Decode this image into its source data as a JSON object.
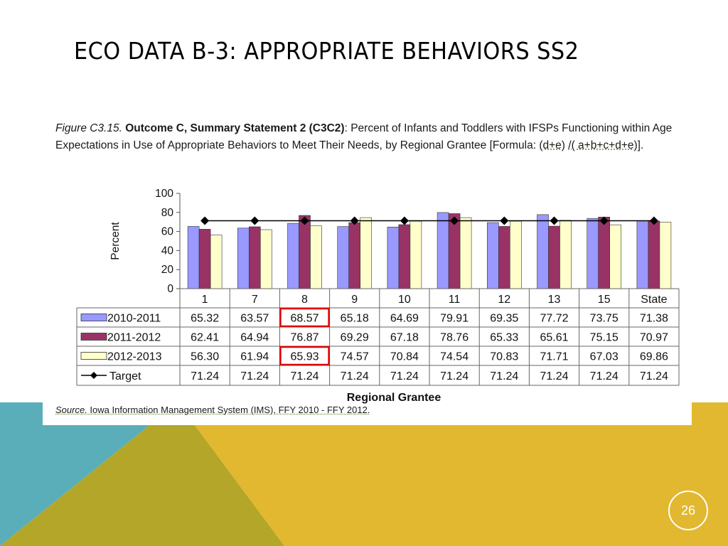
{
  "slide": {
    "title": "ECO DATA B-3: APPROPRIATE BEHAVIORS SS2",
    "page_number": "26"
  },
  "colors": {
    "teal": "#5aaeb9",
    "olive": "#b3a628",
    "gold": "#e2b830",
    "series_2010": "#9999ff",
    "series_2011": "#993366",
    "series_2012": "#ffffcc",
    "target": "#000000",
    "highlight": "#e00000"
  },
  "caption": {
    "figure": "Figure  C3.15.",
    "bold": "Outcome  C,  Summary  Statement  2  (C3C2)",
    "text": ":  Percent  of Infants and Toddlers with IFSPs Functioning within Age Expectations in Use  of Appropriate Behaviors to Meet Their  Needs,  by Regional Grantee  [Formula:  ",
    "formula_a": "(d+e)",
    "formula_sep": " ",
    "formula_b": "/( a+b+c+d+e)",
    "formula_end": "]."
  },
  "source": {
    "label": "Source.",
    "text": " Iowa Information Management System (IMS), FFY 2010 - FFY 2012."
  },
  "chart_data": {
    "type": "bar",
    "ylabel": "Percent",
    "xlabel": "Regional Grantee",
    "ylim": [
      0,
      100
    ],
    "yticks": [
      "0",
      "20",
      "40",
      "60",
      "80",
      "100"
    ],
    "categories": [
      "1",
      "7",
      "8",
      "9",
      "10",
      "11",
      "12",
      "13",
      "15",
      "State"
    ],
    "series": [
      {
        "name": "2010-2011",
        "values": [
          65.32,
          63.57,
          68.57,
          65.18,
          64.69,
          79.91,
          69.35,
          77.72,
          73.75,
          71.38
        ],
        "labels": [
          "65.32",
          "63.57",
          "68.57",
          "65.18",
          "64.69",
          "79.91",
          "69.35",
          "77.72",
          "73.75",
          "71.38"
        ]
      },
      {
        "name": "2011-2012",
        "values": [
          62.41,
          64.94,
          76.87,
          69.29,
          67.18,
          78.76,
          65.33,
          65.61,
          75.15,
          70.97
        ],
        "labels": [
          "62.41",
          "64.94",
          "76.87",
          "69.29",
          "67.18",
          "78.76",
          "65.33",
          "65.61",
          "75.15",
          "70.97"
        ]
      },
      {
        "name": "2012-2013",
        "values": [
          56.3,
          61.94,
          65.93,
          74.57,
          70.84,
          74.54,
          70.83,
          71.71,
          67.03,
          69.86
        ],
        "labels": [
          "56.30",
          "61.94",
          "65.93",
          "74.57",
          "70.84",
          "74.54",
          "70.83",
          "71.71",
          "67.03",
          "69.86"
        ]
      }
    ],
    "target": {
      "name": "Target",
      "values": [
        71.24,
        71.24,
        71.24,
        71.24,
        71.24,
        71.24,
        71.24,
        71.24,
        71.24,
        71.24
      ],
      "labels": [
        "71.24",
        "71.24",
        "71.24",
        "71.24",
        "71.24",
        "71.24",
        "71.24",
        "71.24",
        "71.24",
        "71.24"
      ]
    },
    "highlighted_cells": [
      {
        "series": 0,
        "category": 2
      },
      {
        "series": 2,
        "category": 2
      }
    ],
    "grid": false,
    "legend": "data-table"
  }
}
